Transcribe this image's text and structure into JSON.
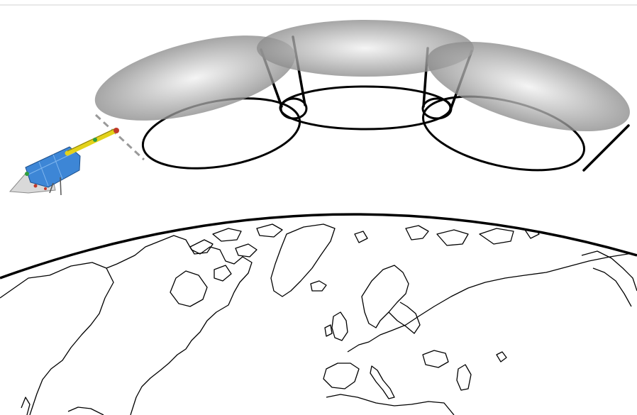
{
  "figure": {
    "subject": "satellite-sensor-footprint-over-earth",
    "colors": {
      "background": "#ffffff",
      "outline": "#000000",
      "footprint_shadow": "#8c8c8c",
      "footprint_highlight": "#f2f2f2",
      "satellite_body": "#3d86d6",
      "satellite_boom": "#e3d21a",
      "satellite_panel": "#d9d9d9",
      "top_rule": "#d0d0d0"
    },
    "footprints": [
      {
        "name": "left-footprint"
      },
      {
        "name": "center-footprint"
      },
      {
        "name": "right-footprint"
      }
    ],
    "icons": [
      "satellite-icon",
      "earth-globe-icon"
    ]
  }
}
